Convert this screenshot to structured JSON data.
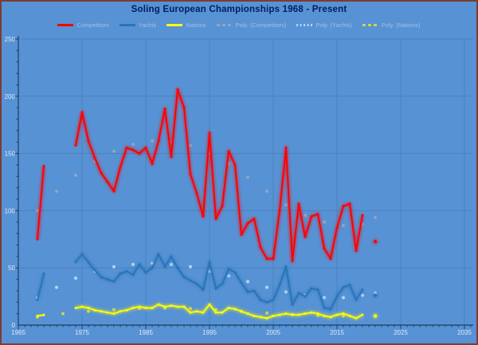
{
  "chart_data": {
    "type": "line",
    "title": "Soling European Championships 1968 - Present",
    "xlabel": "",
    "ylabel": "",
    "x_axis": {
      "min": 1965,
      "max": 2036,
      "ticks": [
        1965,
        1975,
        1985,
        1995,
        2005,
        2015,
        2025,
        2035
      ],
      "minor_step": 1
    },
    "y_axis": {
      "min": 0,
      "max": 250,
      "ticks": [
        0,
        50,
        100,
        150,
        200,
        250
      ],
      "minor_step": 10
    },
    "grid": true,
    "legend_position": "top",
    "series": [
      {
        "name": "Competitors",
        "color": "#ff0000",
        "style": "solid",
        "width": 2,
        "points": [
          [
            1968,
            75
          ],
          [
            1969,
            139
          ],
          [
            1974,
            157
          ],
          [
            1975,
            186
          ],
          [
            1976,
            161
          ],
          [
            1977,
            146
          ],
          [
            1978,
            133
          ],
          [
            1979,
            125
          ],
          [
            1980,
            117
          ],
          [
            1981,
            138
          ],
          [
            1982,
            155
          ],
          [
            1983,
            153
          ],
          [
            1984,
            150
          ],
          [
            1985,
            155
          ],
          [
            1986,
            141
          ],
          [
            1987,
            161
          ],
          [
            1988,
            189
          ],
          [
            1989,
            147
          ],
          [
            1990,
            206
          ],
          [
            1991,
            190
          ],
          [
            1992,
            132
          ],
          [
            1993,
            115
          ],
          [
            1994,
            95
          ],
          [
            1995,
            168
          ],
          [
            1996,
            93
          ],
          [
            1997,
            104
          ],
          [
            1998,
            152
          ],
          [
            1999,
            140
          ],
          [
            2000,
            79
          ],
          [
            2001,
            89
          ],
          [
            2002,
            93
          ],
          [
            2003,
            68
          ],
          [
            2004,
            58
          ],
          [
            2005,
            58
          ],
          [
            2006,
            100
          ],
          [
            2007,
            155
          ],
          [
            2008,
            56
          ],
          [
            2009,
            106
          ],
          [
            2010,
            77
          ],
          [
            2011,
            95
          ],
          [
            2012,
            97
          ],
          [
            2013,
            67
          ],
          [
            2014,
            58
          ],
          [
            2015,
            85
          ],
          [
            2016,
            104
          ],
          [
            2017,
            106
          ],
          [
            2018,
            65
          ],
          [
            2019,
            96
          ],
          [
            2021,
            73
          ]
        ]
      },
      {
        "name": "Yachts",
        "color": "#2874b8",
        "style": "solid",
        "width": 1.8,
        "points": [
          [
            1968,
            22
          ],
          [
            1969,
            45
          ],
          [
            1974,
            55
          ],
          [
            1975,
            62
          ],
          [
            1976,
            55
          ],
          [
            1977,
            48
          ],
          [
            1978,
            42
          ],
          [
            1979,
            40
          ],
          [
            1980,
            38
          ],
          [
            1981,
            45
          ],
          [
            1982,
            47
          ],
          [
            1983,
            44
          ],
          [
            1984,
            53
          ],
          [
            1985,
            46
          ],
          [
            1986,
            50
          ],
          [
            1987,
            62
          ],
          [
            1988,
            51
          ],
          [
            1989,
            60
          ],
          [
            1990,
            50
          ],
          [
            1991,
            42
          ],
          [
            1992,
            39
          ],
          [
            1993,
            36
          ],
          [
            1994,
            31
          ],
          [
            1995,
            55
          ],
          [
            1996,
            32
          ],
          [
            1997,
            36
          ],
          [
            1998,
            49
          ],
          [
            1999,
            46
          ],
          [
            2000,
            37
          ],
          [
            2001,
            29
          ],
          [
            2002,
            30
          ],
          [
            2003,
            22
          ],
          [
            2004,
            20
          ],
          [
            2005,
            22
          ],
          [
            2006,
            35
          ],
          [
            2007,
            51
          ],
          [
            2008,
            18
          ],
          [
            2009,
            28
          ],
          [
            2010,
            25
          ],
          [
            2011,
            32
          ],
          [
            2012,
            31
          ],
          [
            2013,
            15
          ],
          [
            2014,
            14
          ],
          [
            2015,
            25
          ],
          [
            2016,
            33
          ],
          [
            2017,
            35
          ],
          [
            2018,
            22
          ],
          [
            2019,
            31
          ],
          [
            2021,
            26
          ]
        ]
      },
      {
        "name": "Nations",
        "color": "#ffff00",
        "style": "solid",
        "width": 1.8,
        "points": [
          [
            1968,
            8
          ],
          [
            1969,
            9
          ],
          [
            1974,
            15
          ],
          [
            1975,
            16
          ],
          [
            1976,
            15
          ],
          [
            1977,
            13
          ],
          [
            1978,
            12
          ],
          [
            1979,
            11
          ],
          [
            1980,
            10
          ],
          [
            1981,
            12
          ],
          [
            1982,
            13
          ],
          [
            1983,
            15
          ],
          [
            1984,
            16
          ],
          [
            1985,
            15
          ],
          [
            1986,
            15
          ],
          [
            1987,
            18
          ],
          [
            1988,
            16
          ],
          [
            1989,
            17
          ],
          [
            1990,
            16
          ],
          [
            1991,
            16
          ],
          [
            1992,
            11
          ],
          [
            1993,
            12
          ],
          [
            1994,
            11
          ],
          [
            1995,
            18
          ],
          [
            1996,
            11
          ],
          [
            1997,
            11
          ],
          [
            1998,
            15
          ],
          [
            1999,
            14
          ],
          [
            2000,
            12
          ],
          [
            2001,
            10
          ],
          [
            2002,
            8
          ],
          [
            2003,
            7
          ],
          [
            2004,
            6
          ],
          [
            2005,
            8
          ],
          [
            2006,
            9
          ],
          [
            2007,
            10
          ],
          [
            2008,
            9
          ],
          [
            2009,
            9
          ],
          [
            2010,
            10
          ],
          [
            2011,
            11
          ],
          [
            2012,
            10
          ],
          [
            2013,
            8
          ],
          [
            2014,
            7
          ],
          [
            2015,
            9
          ],
          [
            2016,
            10
          ],
          [
            2017,
            8
          ],
          [
            2018,
            6
          ],
          [
            2019,
            9
          ],
          [
            2021,
            8
          ]
        ]
      },
      {
        "name": "Poly. (Competitors)",
        "color": "#8fa6c2",
        "style": "dashed",
        "width": 1.2,
        "points": [
          [
            1968,
            100
          ],
          [
            1971,
            117
          ],
          [
            1974,
            131
          ],
          [
            1977,
            143
          ],
          [
            1980,
            152
          ],
          [
            1983,
            158
          ],
          [
            1986,
            161
          ],
          [
            1989,
            160
          ],
          [
            1992,
            157
          ],
          [
            1995,
            150
          ],
          [
            1998,
            141
          ],
          [
            2001,
            129
          ],
          [
            2004,
            117
          ],
          [
            2007,
            105
          ],
          [
            2010,
            96
          ],
          [
            2013,
            90
          ],
          [
            2016,
            87
          ],
          [
            2019,
            88
          ],
          [
            2021,
            94
          ]
        ]
      },
      {
        "name": "Poly. (Yachts)",
        "color": "#b9d4ee",
        "style": "dotted",
        "width": 1.2,
        "points": [
          [
            1968,
            24
          ],
          [
            1971,
            33
          ],
          [
            1974,
            41
          ],
          [
            1977,
            47
          ],
          [
            1980,
            51
          ],
          [
            1983,
            53
          ],
          [
            1986,
            54
          ],
          [
            1989,
            53
          ],
          [
            1992,
            51
          ],
          [
            1995,
            47
          ],
          [
            1998,
            43
          ],
          [
            2001,
            38
          ],
          [
            2004,
            33
          ],
          [
            2007,
            29
          ],
          [
            2010,
            26
          ],
          [
            2013,
            24
          ],
          [
            2016,
            24
          ],
          [
            2019,
            26
          ],
          [
            2021,
            28
          ]
        ]
      },
      {
        "name": "Poly. (Nations)",
        "color": "#cdd544",
        "style": "dashed",
        "width": 1.4,
        "points": [
          [
            1968,
            7
          ],
          [
            1972,
            10
          ],
          [
            1976,
            12
          ],
          [
            1980,
            13.5
          ],
          [
            1984,
            14.5
          ],
          [
            1988,
            15
          ],
          [
            1992,
            14.5
          ],
          [
            1996,
            13.5
          ],
          [
            2000,
            12
          ],
          [
            2004,
            10.5
          ],
          [
            2008,
            9.2
          ],
          [
            2012,
            8.4
          ],
          [
            2016,
            7.8
          ],
          [
            2021,
            7.8
          ]
        ]
      }
    ]
  },
  "colors": {
    "background": "#5792d4",
    "grid": "#4a82bb",
    "axis": "#1c3e63",
    "border": "#7e3b32",
    "title": "#002060",
    "tick_label": "#dde9f6",
    "legend_label": "#9cc2e5"
  }
}
